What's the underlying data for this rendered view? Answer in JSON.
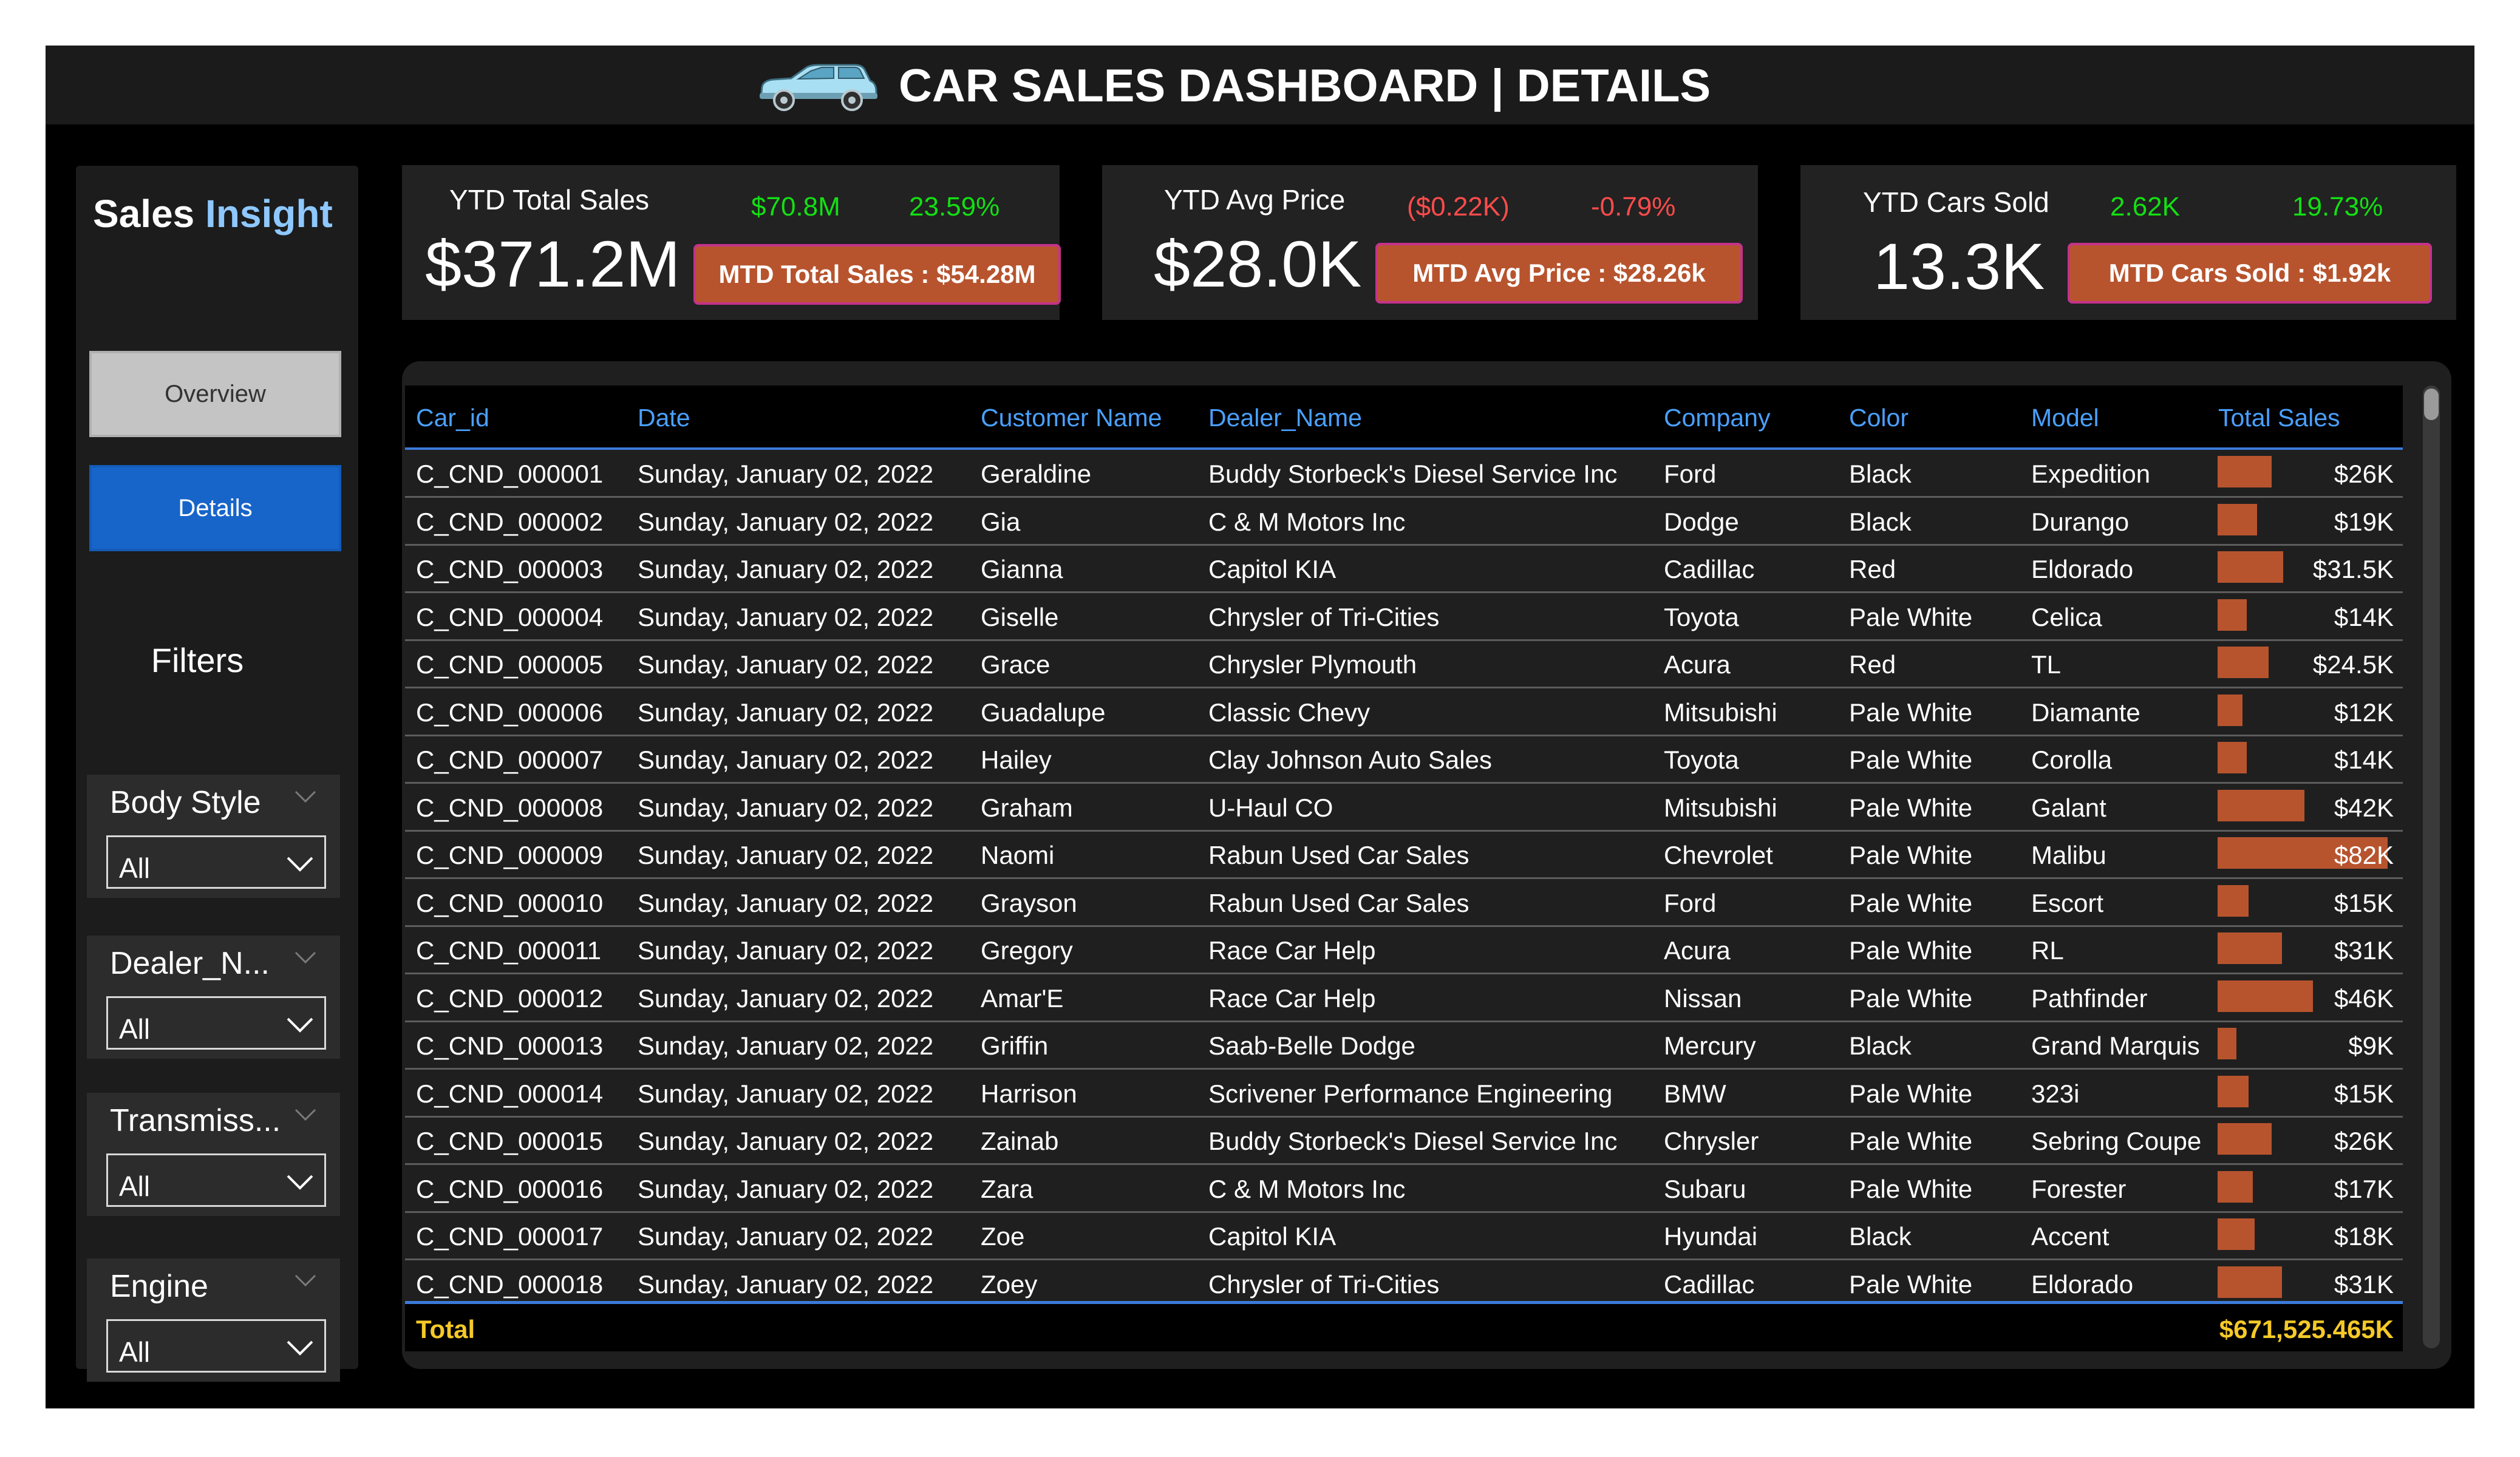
{
  "header": {
    "title": "CAR SALES DASHBOARD | DETAILS",
    "icon": "car-icon",
    "icon_color": "#a9dff3"
  },
  "sidebar": {
    "brand_part1": "Sales",
    "brand_part2": "Insight",
    "nav": {
      "overview": "Overview",
      "details": "Details"
    },
    "filters_heading": "Filters",
    "slicers": [
      {
        "label": "Body Style",
        "value": "All"
      },
      {
        "label": "Dealer_N...",
        "value": "All"
      },
      {
        "label": "Transmiss...",
        "value": "All"
      },
      {
        "label": "Engine",
        "value": "All"
      }
    ]
  },
  "kpis": [
    {
      "label": "YTD Total Sales",
      "value": "$371.2M",
      "delta_value": "$70.8M",
      "delta_pct": "23.59%",
      "mtd": "MTD Total Sales : $54.28M"
    },
    {
      "label": "YTD Avg Price",
      "value": "$28.0K",
      "delta_value": "($0.22K)",
      "delta_pct": "-0.79%",
      "mtd": "MTD Avg Price : $28.26k"
    },
    {
      "label": "YTD Cars Sold",
      "value": "13.3K",
      "delta_value": "2.62K",
      "delta_pct": "19.73%",
      "mtd": "MTD Cars Sold : $1.92k"
    }
  ],
  "colors": {
    "positive": "#13e013",
    "negative": "#ff4b4b",
    "accent": "#b7542e",
    "header_blue": "#4aa0ff",
    "total": "#f5c928"
  },
  "table": {
    "columns": [
      "Car_id",
      "Date",
      "Customer Name",
      "Dealer_Name",
      "Company",
      "Color",
      "Model",
      "Total Sales"
    ],
    "rows": [
      {
        "car_id": "C_CND_000001",
        "date": "Sunday, January 02, 2022",
        "customer": "Geraldine",
        "dealer": "Buddy Storbeck's Diesel Service Inc",
        "company": "Ford",
        "color": "Black",
        "model": "Expedition",
        "sales": "$26K",
        "value": 26000
      },
      {
        "car_id": "C_CND_000002",
        "date": "Sunday, January 02, 2022",
        "customer": "Gia",
        "dealer": "C & M Motors Inc",
        "company": "Dodge",
        "color": "Black",
        "model": "Durango",
        "sales": "$19K",
        "value": 19000
      },
      {
        "car_id": "C_CND_000003",
        "date": "Sunday, January 02, 2022",
        "customer": "Gianna",
        "dealer": "Capitol KIA",
        "company": "Cadillac",
        "color": "Red",
        "model": "Eldorado",
        "sales": "$31.5K",
        "value": 31500
      },
      {
        "car_id": "C_CND_000004",
        "date": "Sunday, January 02, 2022",
        "customer": "Giselle",
        "dealer": "Chrysler of Tri-Cities",
        "company": "Toyota",
        "color": "Pale White",
        "model": "Celica",
        "sales": "$14K",
        "value": 14000
      },
      {
        "car_id": "C_CND_000005",
        "date": "Sunday, January 02, 2022",
        "customer": "Grace",
        "dealer": "Chrysler Plymouth",
        "company": "Acura",
        "color": "Red",
        "model": "TL",
        "sales": "$24.5K",
        "value": 24500
      },
      {
        "car_id": "C_CND_000006",
        "date": "Sunday, January 02, 2022",
        "customer": "Guadalupe",
        "dealer": "Classic Chevy",
        "company": "Mitsubishi",
        "color": "Pale White",
        "model": "Diamante",
        "sales": "$12K",
        "value": 12000
      },
      {
        "car_id": "C_CND_000007",
        "date": "Sunday, January 02, 2022",
        "customer": "Hailey",
        "dealer": "Clay Johnson Auto Sales",
        "company": "Toyota",
        "color": "Pale White",
        "model": "Corolla",
        "sales": "$14K",
        "value": 14000
      },
      {
        "car_id": "C_CND_000008",
        "date": "Sunday, January 02, 2022",
        "customer": "Graham",
        "dealer": "U-Haul CO",
        "company": "Mitsubishi",
        "color": "Pale White",
        "model": "Galant",
        "sales": "$42K",
        "value": 42000
      },
      {
        "car_id": "C_CND_000009",
        "date": "Sunday, January 02, 2022",
        "customer": "Naomi",
        "dealer": "Rabun Used Car Sales",
        "company": "Chevrolet",
        "color": "Pale White",
        "model": "Malibu",
        "sales": "$82K",
        "value": 82000
      },
      {
        "car_id": "C_CND_000010",
        "date": "Sunday, January 02, 2022",
        "customer": "Grayson",
        "dealer": "Rabun Used Car Sales",
        "company": "Ford",
        "color": "Pale White",
        "model": "Escort",
        "sales": "$15K",
        "value": 15000
      },
      {
        "car_id": "C_CND_000011",
        "date": "Sunday, January 02, 2022",
        "customer": "Gregory",
        "dealer": "Race Car Help",
        "company": "Acura",
        "color": "Pale White",
        "model": "RL",
        "sales": "$31K",
        "value": 31000
      },
      {
        "car_id": "C_CND_000012",
        "date": "Sunday, January 02, 2022",
        "customer": "Amar'E",
        "dealer": "Race Car Help",
        "company": "Nissan",
        "color": "Pale White",
        "model": "Pathfinder",
        "sales": "$46K",
        "value": 46000
      },
      {
        "car_id": "C_CND_000013",
        "date": "Sunday, January 02, 2022",
        "customer": "Griffin",
        "dealer": "Saab-Belle Dodge",
        "company": "Mercury",
        "color": "Black",
        "model": "Grand Marquis",
        "sales": "$9K",
        "value": 9000
      },
      {
        "car_id": "C_CND_000014",
        "date": "Sunday, January 02, 2022",
        "customer": "Harrison",
        "dealer": "Scrivener Performance Engineering",
        "company": "BMW",
        "color": "Pale White",
        "model": "323i",
        "sales": "$15K",
        "value": 15000
      },
      {
        "car_id": "C_CND_000015",
        "date": "Sunday, January 02, 2022",
        "customer": "Zainab",
        "dealer": "Buddy Storbeck's Diesel Service Inc",
        "company": "Chrysler",
        "color": "Pale White",
        "model": "Sebring Coupe",
        "sales": "$26K",
        "value": 26000
      },
      {
        "car_id": "C_CND_000016",
        "date": "Sunday, January 02, 2022",
        "customer": "Zara",
        "dealer": "C & M Motors Inc",
        "company": "Subaru",
        "color": "Pale White",
        "model": "Forester",
        "sales": "$17K",
        "value": 17000
      },
      {
        "car_id": "C_CND_000017",
        "date": "Sunday, January 02, 2022",
        "customer": "Zoe",
        "dealer": "Capitol KIA",
        "company": "Hyundai",
        "color": "Black",
        "model": "Accent",
        "sales": "$18K",
        "value": 18000
      },
      {
        "car_id": "C_CND_000018",
        "date": "Sunday, January 02, 2022",
        "customer": "Zoey",
        "dealer": "Chrysler of Tri-Cities",
        "company": "Cadillac",
        "color": "Pale White",
        "model": "Eldorado",
        "sales": "$31K",
        "value": 31000
      }
    ],
    "total_label": "Total",
    "total_value": "$671,525.465K"
  }
}
